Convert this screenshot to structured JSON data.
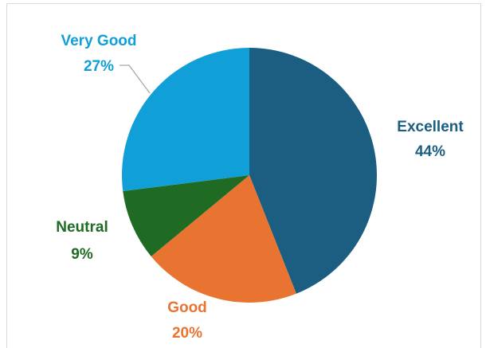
{
  "chart_data": {
    "type": "pie",
    "title": "",
    "categories": [
      "Excellent",
      "Good",
      "Neutral",
      "Very Good"
    ],
    "values": [
      44,
      20,
      9,
      27
    ],
    "value_labels": [
      "44%",
      "20%",
      "9%",
      "27%"
    ],
    "colors": [
      "#1b5e82",
      "#e97432",
      "#1f6b24",
      "#119fd8"
    ],
    "start_angle_deg": 0,
    "direction": "clockwise",
    "legend": "none",
    "labels": "outside"
  }
}
